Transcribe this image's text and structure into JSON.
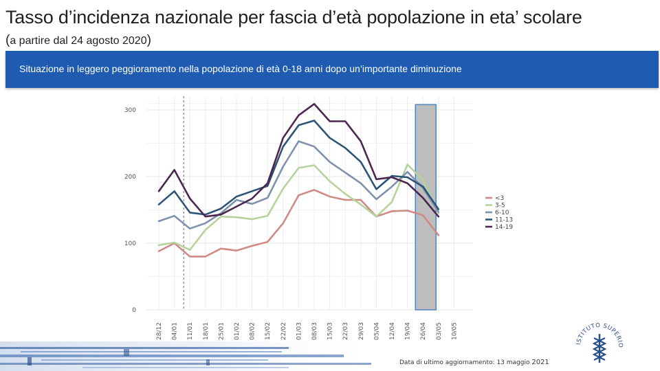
{
  "header": {
    "title": "Tasso d’incidenza nazionale per fascia d’età popolazione in eta’ scolare",
    "subtitle_open": "(",
    "subtitle": "a partire dal 24 agosto 2020",
    "subtitle_close": ")"
  },
  "banner": {
    "text": "Situazione in leggero peggioramento nella popolazione di età 0-18 anni dopo un’importante diminuzione"
  },
  "footer": {
    "text": "Data di ultimo aggiornamento: 13 maggio",
    "year": "2021"
  },
  "logo": {
    "text": "ISTITUTO SUPERIORE DI SANITÀ"
  },
  "colors": {
    "banner": "#1f5bb0",
    "lt3": "#d08a86",
    "3_5": "#b5d39a",
    "6_10": "#7f92ad",
    "11_13": "#2c5477",
    "14_19": "#4a2650",
    "highlight_fill": "#bdbdbd",
    "highlight_stroke": "#3a78c0"
  },
  "chart_data": {
    "type": "line",
    "title": "",
    "xlabel": "",
    "ylabel": "",
    "ylim": [
      0,
      310
    ],
    "yticks": [
      0,
      100,
      200,
      300
    ],
    "grid": true,
    "legend_position": "right",
    "categories": [
      "28/12",
      "04/01",
      "11/01",
      "18/01",
      "25/01",
      "01/02",
      "08/02",
      "15/02",
      "22/02",
      "01/03",
      "08/03",
      "15/03",
      "22/03",
      "29/03",
      "05/04",
      "12/04",
      "19/04",
      "26/04",
      "03/05",
      "10/05"
    ],
    "vline_category": "11/01",
    "highlight_category": "26/04",
    "series": [
      {
        "name": "<3",
        "color_key": "lt3",
        "values": [
          88,
          100,
          80,
          80,
          92,
          89,
          96,
          102,
          130,
          172,
          180,
          170,
          165,
          165,
          140,
          148,
          149,
          142,
          112,
          null
        ]
      },
      {
        "name": "3-5",
        "color_key": "3_5",
        "values": [
          97,
          101,
          90,
          120,
          140,
          139,
          136,
          141,
          182,
          213,
          217,
          193,
          174,
          158,
          140,
          162,
          218,
          195,
          145,
          null
        ]
      },
      {
        "name": "6-10",
        "color_key": "6_10",
        "values": [
          133,
          141,
          122,
          130,
          145,
          165,
          159,
          168,
          215,
          253,
          245,
          222,
          206,
          190,
          166,
          185,
          207,
          183,
          147,
          null
        ]
      },
      {
        "name": "11-13",
        "color_key": "11_13",
        "values": [
          158,
          178,
          146,
          143,
          152,
          170,
          178,
          186,
          245,
          277,
          284,
          258,
          243,
          222,
          181,
          201,
          199,
          185,
          151,
          null
        ]
      },
      {
        "name": "14-19",
        "color_key": "14_19",
        "values": [
          178,
          210,
          167,
          140,
          143,
          155,
          167,
          190,
          258,
          292,
          309,
          283,
          283,
          253,
          196,
          199,
          190,
          168,
          140,
          null
        ]
      }
    ]
  }
}
